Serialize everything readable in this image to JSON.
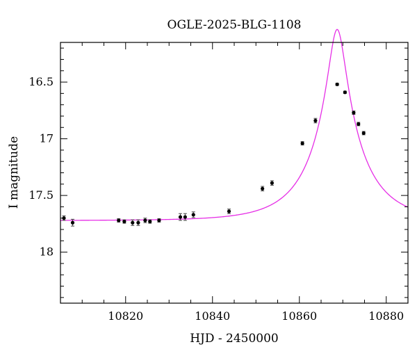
{
  "chart_data": {
    "type": "scatter",
    "title": "OGLE-2025-BLG-1108",
    "xlabel": "HJD - 2450000",
    "ylabel": "I magnitude",
    "xlim": [
      10805,
      10885
    ],
    "ylim": [
      18.45,
      16.15
    ],
    "y_inverted": true,
    "xticks": [
      10820,
      10840,
      10860,
      10880
    ],
    "xtick_labels": [
      "10820",
      "10840",
      "10860",
      "10880"
    ],
    "yticks": [
      16.5,
      17,
      17.5,
      18
    ],
    "ytick_labels": [
      "16.5",
      "17",
      "17.5",
      "18"
    ],
    "grid": false,
    "legend": "none",
    "series": [
      {
        "style": "points-with-errorbars",
        "color": "#000000",
        "x": [
          10805.8,
          10807.8,
          10818.4,
          10819.7,
          10821.6,
          10822.9,
          10824.5,
          10825.6,
          10827.7,
          10832.6,
          10833.7,
          10835.6,
          10843.8,
          10851.5,
          10853.7,
          10860.7,
          10863.7,
          10868.7,
          10870.5,
          10872.5,
          10873.6,
          10874.8
        ],
        "y": [
          17.7,
          17.74,
          17.72,
          17.73,
          17.74,
          17.74,
          17.72,
          17.73,
          17.72,
          17.69,
          17.69,
          17.67,
          17.64,
          17.44,
          17.39,
          17.04,
          16.84,
          16.52,
          16.59,
          16.77,
          16.87,
          16.95
        ],
        "err": [
          0.02,
          0.03,
          0.015,
          0.015,
          0.025,
          0.025,
          0.02,
          0.015,
          0.015,
          0.03,
          0.03,
          0.025,
          0.02,
          0.02,
          0.02,
          0.015,
          0.02,
          0.01,
          0.01,
          0.015,
          0.015,
          0.015
        ]
      },
      {
        "style": "model-curve",
        "color": "#e62ee6",
        "model": {
          "t0": 10868.7,
          "tE": 12.0,
          "u0": 0.157,
          "I_source": 18.13,
          "I_blend": 18.98
        }
      }
    ]
  }
}
